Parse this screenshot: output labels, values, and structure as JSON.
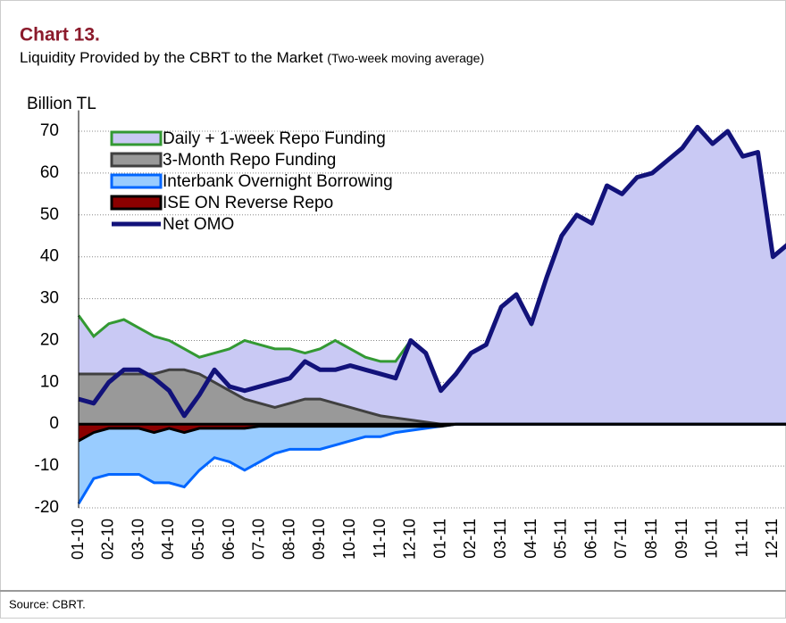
{
  "chart_data": {
    "type": "area",
    "title": "Chart 13.",
    "subtitle": "Liquidity Provided by the CBRT to the Market",
    "subtitle_note": "(Two-week moving average)",
    "y_label": "Billion TL",
    "source": "Source: CBRT.",
    "categories": [
      "01-10",
      null,
      "02-10",
      null,
      "03-10",
      null,
      "04-10",
      null,
      "05-10",
      null,
      "06-10",
      null,
      "07-10",
      null,
      "08-10",
      null,
      "09-10",
      null,
      "10-10",
      null,
      "11-10",
      null,
      "12-10",
      null,
      "01-11",
      null,
      "02-11",
      null,
      "03-11",
      null,
      "04-11",
      null,
      "05-11",
      null,
      "06-11",
      null,
      "07-11",
      null,
      "08-11",
      null,
      "09-11",
      null,
      "10-11",
      null,
      "11-11",
      null,
      "12-11",
      null
    ],
    "ylim": [
      -20,
      75
    ],
    "yticks": [
      -20,
      -10,
      0,
      10,
      20,
      30,
      40,
      50,
      60,
      70
    ],
    "grid": true,
    "series": [
      {
        "name": "Daily + 1-week Repo Funding",
        "color": "#339933",
        "fill": "#c9c9f4",
        "kind": "area",
        "values": [
          26,
          21,
          24,
          25,
          23,
          21,
          20,
          18,
          16,
          17,
          18,
          20,
          19,
          18,
          18,
          17,
          18,
          20,
          18,
          16,
          15,
          15,
          20,
          17,
          8,
          12,
          17,
          19,
          28,
          31,
          24,
          35,
          45,
          50,
          48,
          57,
          55,
          59,
          60,
          63,
          66,
          71,
          67,
          70,
          64,
          65,
          40,
          43
        ]
      },
      {
        "name": "3-Month Repo Funding",
        "color": "#404040",
        "fill": "#999999",
        "kind": "area",
        "values": [
          12,
          12,
          12,
          12,
          12,
          12,
          13,
          13,
          12,
          10,
          8,
          6,
          5,
          4,
          5,
          6,
          6,
          5,
          4,
          3,
          2,
          1.5,
          1,
          0.5,
          0,
          0,
          0,
          0,
          0,
          0,
          0,
          0,
          0,
          0,
          0,
          0,
          0,
          0,
          0,
          0,
          0,
          0,
          0,
          0,
          0,
          0,
          0,
          0
        ]
      },
      {
        "name": "Interbank Overnight Borrowing",
        "color": "#0066ff",
        "fill": "#99ccff",
        "kind": "area",
        "values": [
          -19,
          -13,
          -12,
          -12,
          -12,
          -14,
          -14,
          -15,
          -11,
          -8,
          -9,
          -11,
          -9,
          -7,
          -6,
          -6,
          -6,
          -5,
          -4,
          -3,
          -3,
          -2,
          -1.5,
          -1,
          -0.5,
          0,
          0,
          0,
          0,
          0,
          0,
          0,
          0,
          0,
          0,
          0,
          0,
          0,
          0,
          0,
          0,
          0,
          0,
          0,
          0,
          0,
          0,
          0
        ]
      },
      {
        "name": "ISE ON Reverse Repo",
        "color": "#000000",
        "fill": "#8b0000",
        "kind": "area",
        "values": [
          -4,
          -2,
          -1,
          -1,
          -1,
          -2,
          -1,
          -2,
          -1,
          -1,
          -1,
          -1,
          -0.5,
          -0.5,
          -0.5,
          -0.5,
          -0.5,
          -0.5,
          -0.5,
          -0.5,
          -0.5,
          -0.5,
          -0.5,
          -0.5,
          -0.5,
          0,
          0,
          0,
          0,
          0,
          0,
          0,
          0,
          0,
          0,
          0,
          0,
          0,
          0,
          0,
          0,
          0,
          0,
          0,
          0,
          0,
          0,
          0
        ]
      },
      {
        "name": "Net OMO",
        "color": "#12127a",
        "kind": "line",
        "values": [
          6,
          5,
          10,
          13,
          13,
          11,
          8,
          2,
          7,
          13,
          9,
          8,
          9,
          10,
          11,
          15,
          13,
          13,
          14,
          13,
          12,
          11,
          20,
          17,
          8,
          12,
          17,
          19,
          28,
          31,
          24,
          35,
          45,
          50,
          48,
          57,
          55,
          59,
          60,
          63,
          66,
          71,
          67,
          70,
          64,
          65,
          40,
          43
        ]
      }
    ]
  }
}
